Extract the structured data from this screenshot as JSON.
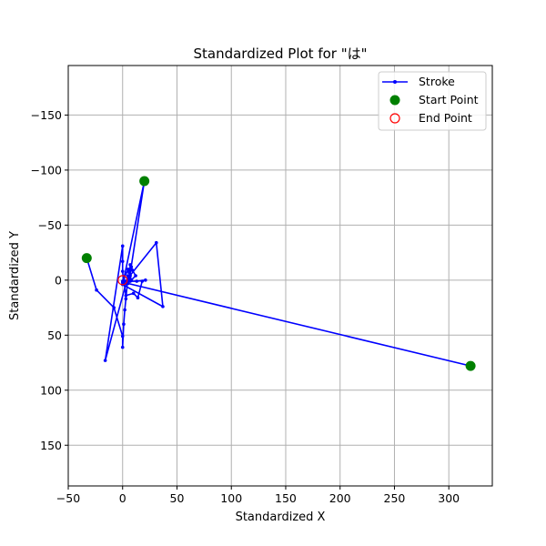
{
  "chart_data": {
    "type": "line",
    "title": "Standardized Plot for \"は\"",
    "xlabel": "Standardized X",
    "ylabel": "Standardized Y",
    "xlim": [
      -50,
      340
    ],
    "ylim": [
      -195,
      187
    ],
    "y_inverted": true,
    "grid": true,
    "x_ticks": [
      -50,
      0,
      50,
      100,
      150,
      200,
      250,
      300
    ],
    "y_ticks": [
      -150,
      -100,
      -50,
      0,
      50,
      100,
      150
    ],
    "x_tick_labels": [
      "−50",
      "0",
      "50",
      "100",
      "150",
      "200",
      "250",
      "300"
    ],
    "y_tick_labels": [
      "−150",
      "−100",
      "−50",
      "0",
      "50",
      "100",
      "150"
    ],
    "legend_position": "top-right",
    "series": [
      {
        "name": "Stroke",
        "color": "#0000ff",
        "marker": "dot",
        "x": [
          -33,
          -24,
          -8,
          0,
          0,
          1,
          2,
          3,
          5,
          -16,
          0,
          0,
          0,
          1,
          31,
          37,
          0,
          20,
          6,
          7,
          8,
          9,
          12,
          8,
          7,
          6,
          5,
          0,
          0,
          1,
          3,
          10,
          14,
          18,
          21,
          13,
          7,
          5,
          5,
          320
        ],
        "y": [
          -20,
          9,
          25,
          51,
          61,
          40,
          27,
          17,
          -4,
          73,
          -31,
          -17,
          -8,
          3,
          -34,
          24,
          4,
          -90,
          0,
          -14,
          -12,
          -9,
          -4,
          0,
          -4,
          -7,
          -10,
          2,
          1,
          0,
          14,
          12,
          16,
          1,
          0,
          1,
          1,
          0,
          3,
          78
        ]
      }
    ],
    "start_points": {
      "name": "Start Point",
      "color": "#008000",
      "x": [
        -33,
        20,
        320
      ],
      "y": [
        -20,
        -90,
        78
      ]
    },
    "end_points": {
      "name": "End Point",
      "color": "#ff0000",
      "x": [
        0
      ],
      "y": [
        0
      ]
    }
  }
}
